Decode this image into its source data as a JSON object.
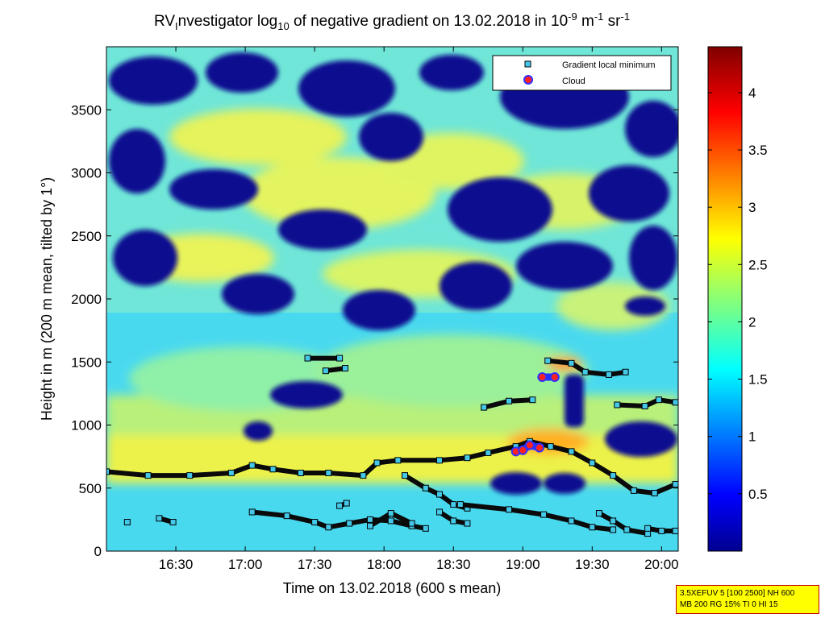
{
  "chart_data": {
    "type": "heatmap",
    "title_parts": {
      "pre": "RV",
      "sub1": "I",
      "mid": "nvestigator log",
      "sub2": "10",
      "mid2": " of negative gradient on 13.02.2018 in 10",
      "sup1": "-9",
      "mid3": " m",
      "sup2": "-1",
      "mid4": " sr",
      "sup3": "-1"
    },
    "xlabel": "Time on 13.02.2018 (600 s mean)",
    "ylabel": "Height in m (200 m mean, tilted by 1°)",
    "x_range_hours": [
      16.0,
      20.12
    ],
    "x_ticks": [
      {
        "h": 16.5,
        "label": "16:30"
      },
      {
        "h": 17.0,
        "label": "17:00"
      },
      {
        "h": 17.5,
        "label": "17:30"
      },
      {
        "h": 18.0,
        "label": "18:00"
      },
      {
        "h": 18.5,
        "label": "18:30"
      },
      {
        "h": 19.0,
        "label": "19:00"
      },
      {
        "h": 19.5,
        "label": "19:30"
      },
      {
        "h": 20.0,
        "label": "20:00"
      }
    ],
    "ylim": [
      0,
      4000
    ],
    "y_ticks": [
      {
        "v": 0,
        "label": "0"
      },
      {
        "v": 500,
        "label": "500"
      },
      {
        "v": 1000,
        "label": "1000"
      },
      {
        "v": 1500,
        "label": "1500"
      },
      {
        "v": 2000,
        "label": "2000"
      },
      {
        "v": 2500,
        "label": "2500"
      },
      {
        "v": 3000,
        "label": "3000"
      },
      {
        "v": 3500,
        "label": "3500"
      }
    ],
    "colorbar": {
      "range": [
        0,
        4.4
      ],
      "ticks": [
        {
          "v": 0.5,
          "label": "0.5"
        },
        {
          "v": 1.0,
          "label": "1"
        },
        {
          "v": 1.5,
          "label": "1.5"
        },
        {
          "v": 2.0,
          "label": "2"
        },
        {
          "v": 2.5,
          "label": "2.5"
        },
        {
          "v": 3.0,
          "label": "3"
        },
        {
          "v": 3.5,
          "label": "3.5"
        },
        {
          "v": 4.0,
          "label": "4"
        }
      ]
    },
    "legend": {
      "placement": "top-right",
      "entries": [
        {
          "label": "Gradient local minimum",
          "marker": "square",
          "color": "#44c8e8"
        },
        {
          "label": "Cloud",
          "marker": "circle",
          "color": "#ff2020"
        }
      ]
    },
    "series": [
      {
        "name": "Gradient local minimum",
        "segments": [
          [
            [
              16.0,
              630
            ],
            [
              16.3,
              600
            ],
            [
              16.6,
              600
            ],
            [
              16.9,
              620
            ],
            [
              17.05,
              680
            ],
            [
              17.2,
              650
            ],
            [
              17.4,
              620
            ],
            [
              17.6,
              620
            ],
            [
              17.85,
              600
            ],
            [
              17.95,
              700
            ],
            [
              18.1,
              720
            ],
            [
              18.4,
              720
            ],
            [
              18.6,
              740
            ],
            [
              18.75,
              780
            ],
            [
              18.95,
              830
            ],
            [
              19.05,
              870
            ],
            [
              19.2,
              830
            ],
            [
              19.35,
              790
            ],
            [
              19.5,
              700
            ],
            [
              19.65,
              600
            ],
            [
              19.8,
              480
            ],
            [
              19.95,
              460
            ],
            [
              20.1,
              530
            ]
          ],
          [
            [
              17.05,
              310
            ],
            [
              17.3,
              280
            ],
            [
              17.5,
              230
            ],
            [
              17.6,
              190
            ],
            [
              17.75,
              220
            ],
            [
              17.9,
              250
            ],
            [
              18.05,
              240
            ],
            [
              18.2,
              200
            ],
            [
              18.3,
              180
            ]
          ],
          [
            [
              17.9,
              200
            ],
            [
              18.05,
              300
            ],
            [
              18.2,
              220
            ]
          ],
          [
            [
              18.15,
              600
            ],
            [
              18.3,
              500
            ],
            [
              18.4,
              450
            ],
            [
              18.5,
              370
            ],
            [
              18.6,
              340
            ]
          ],
          [
            [
              18.4,
              310
            ],
            [
              18.5,
              240
            ],
            [
              18.6,
              220
            ]
          ],
          [
            [
              18.55,
              370
            ],
            [
              18.9,
              330
            ],
            [
              19.15,
              290
            ],
            [
              19.35,
              240
            ],
            [
              19.5,
              190
            ],
            [
              19.65,
              170
            ]
          ],
          [
            [
              19.55,
              300
            ],
            [
              19.65,
              240
            ],
            [
              19.75,
              170
            ],
            [
              19.9,
              140
            ]
          ],
          [
            [
              19.9,
              180
            ],
            [
              20.0,
              160
            ],
            [
              20.1,
              160
            ]
          ],
          [
            [
              16.15,
              230
            ]
          ],
          [
            [
              16.38,
              260
            ],
            [
              16.48,
              230
            ]
          ],
          [
            [
              17.45,
              1530
            ],
            [
              17.68,
              1530
            ]
          ],
          [
            [
              17.58,
              1430
            ],
            [
              17.72,
              1450
            ]
          ],
          [
            [
              17.68,
              360
            ],
            [
              17.73,
              380
            ]
          ],
          [
            [
              18.72,
              1140
            ],
            [
              18.9,
              1190
            ],
            [
              19.07,
              1200
            ]
          ],
          [
            [
              19.18,
              1510
            ],
            [
              19.35,
              1490
            ],
            [
              19.45,
              1420
            ],
            [
              19.62,
              1400
            ],
            [
              19.74,
              1420
            ]
          ],
          [
            [
              19.68,
              1160
            ],
            [
              19.88,
              1150
            ],
            [
              19.98,
              1200
            ],
            [
              20.1,
              1180
            ]
          ]
        ]
      },
      {
        "name": "Cloud",
        "segments": [
          [
            [
              18.95,
              790
            ],
            [
              19.0,
              800
            ],
            [
              19.05,
              840
            ],
            [
              19.12,
              820
            ]
          ],
          [
            [
              19.14,
              1380
            ],
            [
              19.23,
              1380
            ]
          ]
        ]
      }
    ]
  },
  "settings_text": {
    "line1": "3.5XEFUV 5 [100 2500] NH 600",
    "line2": "MB 200 RG 15% TI 0 HI 15"
  }
}
